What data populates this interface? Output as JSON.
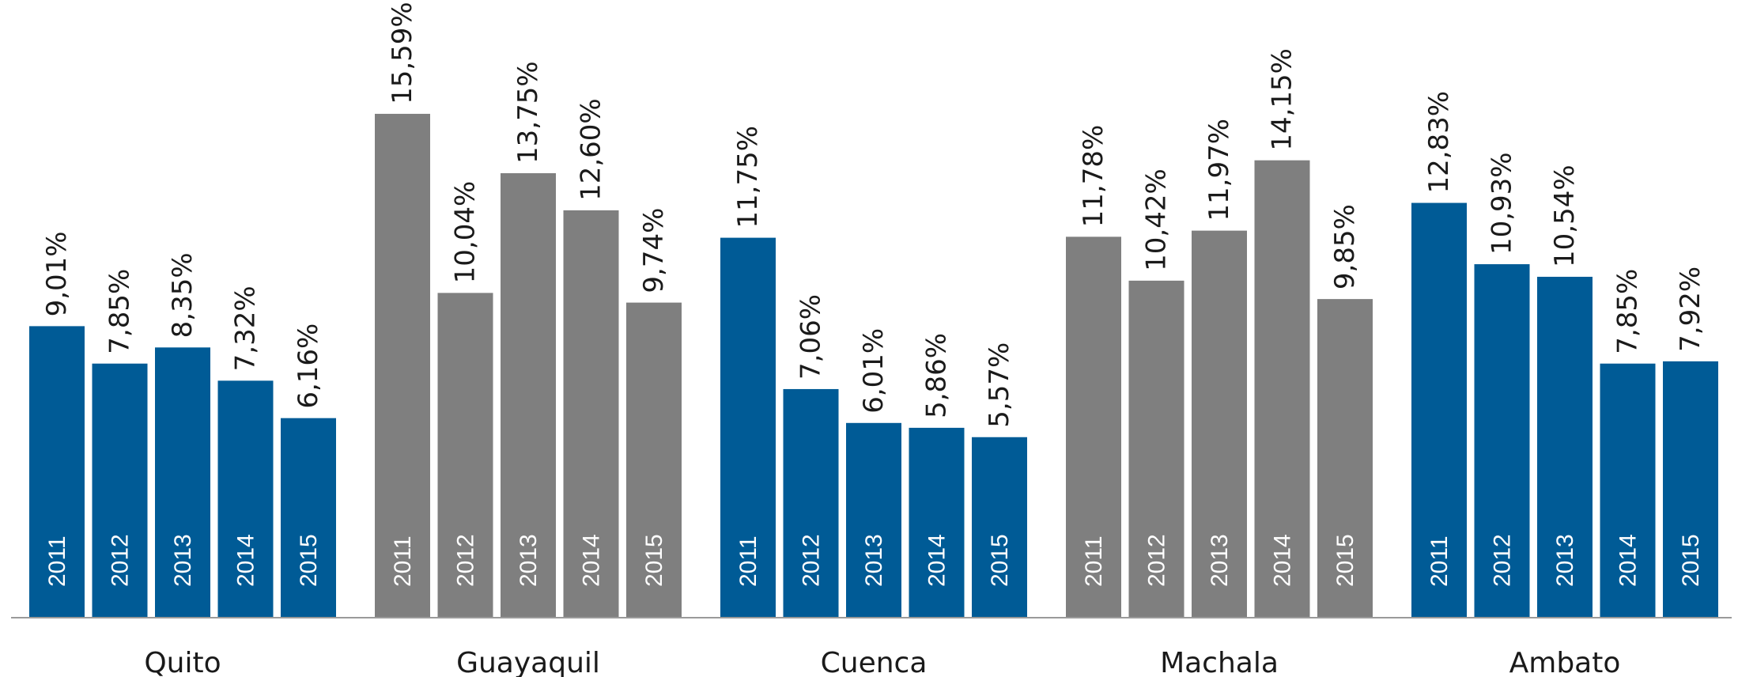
{
  "chart_data": {
    "type": "bar",
    "title": "",
    "xlabel": "",
    "ylabel": "",
    "ylim": [
      0,
      16.5
    ],
    "grid": false,
    "legend": "none",
    "years": [
      "2011",
      "2012",
      "2013",
      "2014",
      "2015"
    ],
    "groups": [
      {
        "city": "Quito",
        "color": "#005b96",
        "values": [
          9.01,
          7.85,
          8.35,
          7.32,
          6.16
        ],
        "labels": [
          "9,01%",
          "7,85%",
          "8,35%",
          "7,32%",
          "6,16%"
        ]
      },
      {
        "city": "Guayaquil",
        "color": "#7f7f7f",
        "values": [
          15.59,
          10.04,
          13.75,
          12.6,
          9.74
        ],
        "labels": [
          "15,59%",
          "10,04%",
          "13,75%",
          "12,60%",
          "9,74%"
        ]
      },
      {
        "city": "Cuenca",
        "color": "#005b96",
        "values": [
          11.75,
          7.06,
          6.01,
          5.86,
          5.57
        ],
        "labels": [
          "11,75%",
          "7,06%",
          "6,01%",
          "5,86%",
          "5,57%"
        ]
      },
      {
        "city": "Machala",
        "color": "#7f7f7f",
        "values": [
          11.78,
          10.42,
          11.97,
          14.15,
          9.85
        ],
        "labels": [
          "11,78%",
          "10,42%",
          "11,97%",
          "14,15%",
          "9,85%"
        ]
      },
      {
        "city": "Ambato",
        "color": "#005b96",
        "values": [
          12.83,
          10.93,
          10.54,
          7.85,
          7.92
        ],
        "labels": [
          "12,83%",
          "10,93%",
          "10,54%",
          "7,85%",
          "7,92%"
        ]
      }
    ]
  }
}
